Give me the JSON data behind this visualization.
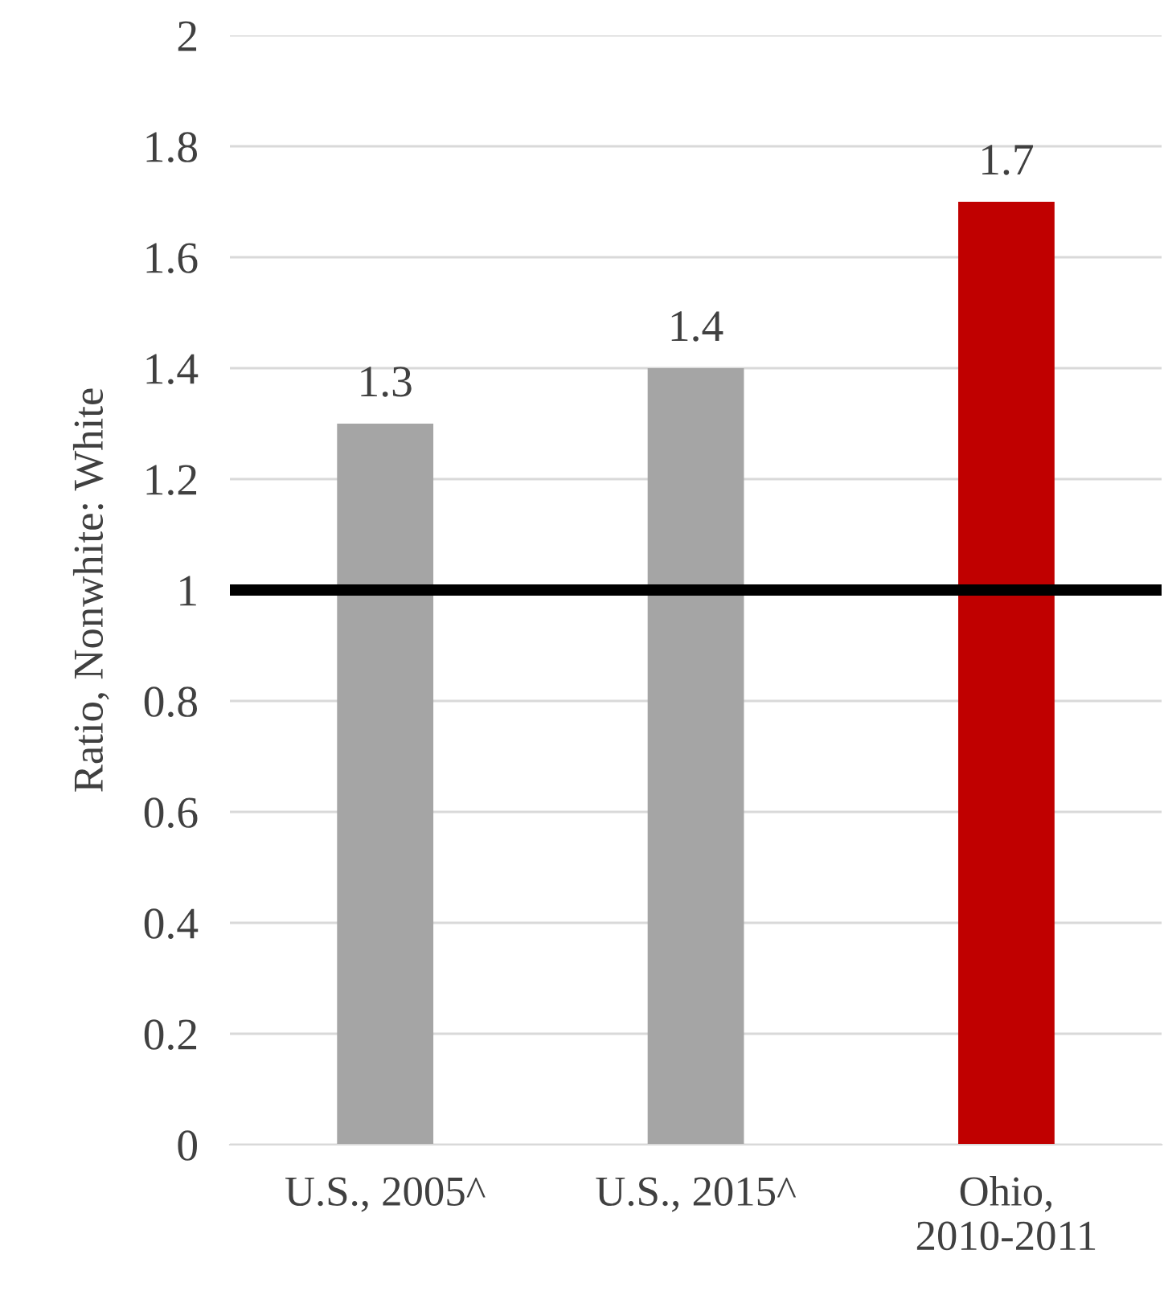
{
  "chart_data": {
    "type": "bar",
    "ylabel": "Ratio, Nonwhite: White",
    "categories": [
      "U.S., 2005^",
      "U.S., 2015^",
      "Ohio,\n2010-2011"
    ],
    "values": [
      1.3,
      1.4,
      1.7
    ],
    "colors": [
      "#a5a5a5",
      "#a5a5a5",
      "#c00000"
    ],
    "ylim": [
      0,
      2
    ],
    "yticks": [
      0,
      {
        "value": 0.2,
        "label": "0.2"
      },
      {
        "value": 0.4,
        "label": "0.4"
      },
      {
        "value": 0.6,
        "label": "0.6"
      },
      {
        "value": 0.8,
        "label": "0.8"
      },
      1,
      {
        "value": 1.2,
        "label": "1.2"
      },
      {
        "value": 1.4,
        "label": "1.4"
      },
      {
        "value": 1.6,
        "label": "1.6"
      },
      {
        "value": 1.8,
        "label": "1.8"
      },
      2
    ],
    "grid": "y",
    "data_labels": true,
    "ref_lines": [
      {
        "axis": "y",
        "value": 1,
        "color": "#000000",
        "line_style": "solid"
      }
    ]
  }
}
